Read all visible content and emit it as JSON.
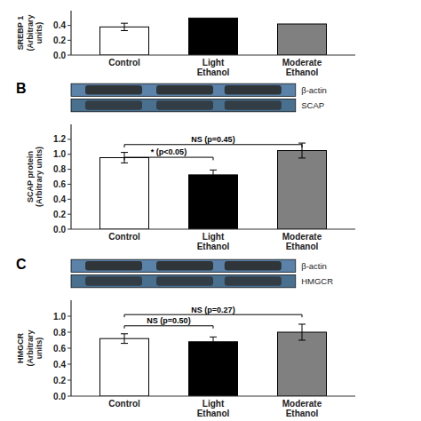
{
  "chart_data": [
    {
      "type": "bar",
      "categories": [
        "Control",
        "Light\nEthanol",
        "Moderate\nEthanol"
      ],
      "values": [
        0.38,
        0.5,
        0.42
      ],
      "errors": [
        0.05,
        0,
        0
      ],
      "colors": [
        "white",
        "black",
        "gray"
      ],
      "ylabel": "SREBP 1\n(Arbitrary\nunits)",
      "ylim": [
        0,
        0.6
      ],
      "yticks": [
        {
          "value": 0,
          "label": "0.0"
        },
        0.2,
        0.4
      ]
    },
    {
      "type": "blot",
      "title": "B",
      "annotations": [
        "β-actin",
        "SCAP"
      ],
      "colors": [
        "#5b82a8",
        "#4a7090"
      ],
      "color": "#2a2a2a"
    },
    {
      "type": "bar",
      "categories": [
        "Control",
        "Light\nEthanol",
        "Moderate\nEthanol"
      ],
      "values": [
        0.955,
        0.725,
        1.05
      ],
      "errors": [
        0.07,
        0.065,
        0.1
      ],
      "colors": [
        "white",
        "black",
        "gray"
      ],
      "ylabel": "SCAP protein\n(Arbitrary units)",
      "ylim": [
        0,
        1.4
      ],
      "yticks": [
        {
          "value": 0,
          "label": "0.0"
        },
        0.2,
        0.4,
        0.6,
        0.8,
        {
          "value": 1,
          "label": "1.0"
        },
        1.2
      ],
      "annotations": [
        {
          "text": "* (p<0.05)",
          "from": 0,
          "to": 1,
          "y": 0.96
        },
        {
          "text": "NS (p=0.45)",
          "from": 0,
          "to": 2,
          "y": 1.13
        }
      ]
    },
    {
      "type": "blot",
      "title": "C",
      "annotations": [
        "β-actin",
        "HMGCR"
      ],
      "colors": [
        "#5b82a8",
        "#4a7090"
      ],
      "color": "#2a2a2a"
    },
    {
      "type": "bar",
      "categories": [
        "Control",
        "Light\nEthanol",
        "Moderate\nEthanol"
      ],
      "values": [
        0.72,
        0.68,
        0.8
      ],
      "errors": [
        0.06,
        0.06,
        0.1
      ],
      "colors": [
        "white",
        "black",
        "gray"
      ],
      "ylabel": "HMGCR\n(Arbitrary\nunits)",
      "ylim": [
        0,
        1.2
      ],
      "yticks": [
        {
          "value": 0,
          "label": "0.0"
        },
        0.2,
        0.4,
        0.6,
        0.8,
        {
          "value": 1,
          "label": "1.0"
        }
      ],
      "annotations": [
        {
          "text": "NS (p=0.50)",
          "from": 0,
          "to": 1,
          "y": 0.88
        },
        {
          "text": "NS (p=0.27)",
          "from": 0,
          "to": 2,
          "y": 1.02
        }
      ]
    }
  ]
}
